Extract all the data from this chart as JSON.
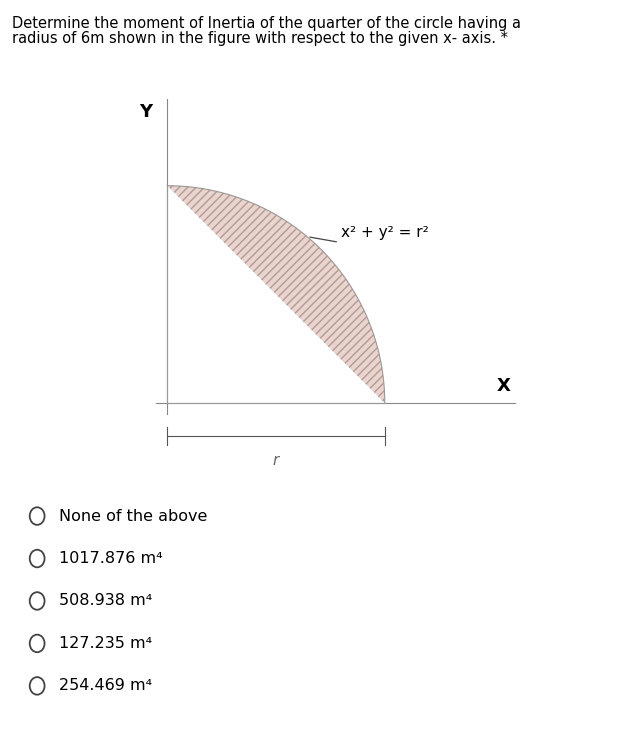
{
  "title_line1": "Determine the moment of Inertia of the quarter of the circle having a",
  "title_line2": "radius of 6m shown in the figure with respect to the given x- axis. *",
  "title_fontsize": 10.5,
  "equation_label": "x² + y² = r²",
  "x_axis_label": "X",
  "y_axis_label": "Y",
  "r_label": "r",
  "fill_color": "#e8d5d0",
  "hatch": "////",
  "hatch_color": "#b89890",
  "options": [
    "None of the above",
    "1017.876 m⁴",
    "508.938 m⁴",
    "127.235 m⁴",
    "254.469 m⁴"
  ],
  "option_fontsize": 11.5,
  "background_color": "#ffffff",
  "text_color": "#000000",
  "axis_line_color": "#888888",
  "outline_color": "#999999"
}
